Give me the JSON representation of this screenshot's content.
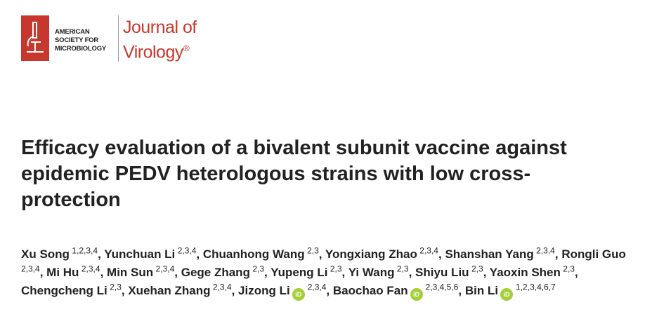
{
  "header": {
    "society_lines": [
      "AMERICAN",
      "SOCIETY FOR",
      "MICROBIOLOGY"
    ],
    "journal_line1": "Journal of",
    "journal_line2": "Virology",
    "registered_mark": "®"
  },
  "article": {
    "title": "Efficacy evaluation of a bivalent subunit vaccine against epidemic PEDV heterologous strains with low cross-protection",
    "author_separator": ",",
    "orcid_icon_label": "iD",
    "authors": [
      {
        "name": "Xu Song",
        "affiliations": "1,2,3,4"
      },
      {
        "name": "Yunchuan Li",
        "affiliations": "2,3,4"
      },
      {
        "name": "Chuanhong Wang",
        "affiliations": "2,3"
      },
      {
        "name": "Yongxiang Zhao",
        "affiliations": "2,3,4"
      },
      {
        "name": "Shanshan Yang",
        "affiliations": "2,3,4"
      },
      {
        "name": "Rongli Guo",
        "affiliations": "2,3,4"
      },
      {
        "name": "Mi Hu",
        "affiliations": "2,3,4"
      },
      {
        "name": "Min Sun",
        "affiliations": "2,3,4"
      },
      {
        "name": "Gege Zhang",
        "affiliations": "2,3"
      },
      {
        "name": "Yupeng Li",
        "affiliations": "2,3"
      },
      {
        "name": "Yi Wang",
        "affiliations": "2,3"
      },
      {
        "name": "Shiyu Liu",
        "affiliations": "2,3"
      },
      {
        "name": "Yaoxin Shen",
        "affiliations": "2,3"
      },
      {
        "name": "Chengcheng Li",
        "affiliations": "2,3"
      },
      {
        "name": "Xuehan Zhang",
        "affiliations": "2,3,4"
      },
      {
        "name": "Jizong Li",
        "affiliations": "2,3,4",
        "orcid": true
      },
      {
        "name": "Baochao Fan",
        "affiliations": "2,3,4,5,6",
        "orcid": true
      },
      {
        "name": "Bin Li",
        "affiliations": "1,2,3,4,6,7",
        "orcid": true
      }
    ]
  }
}
